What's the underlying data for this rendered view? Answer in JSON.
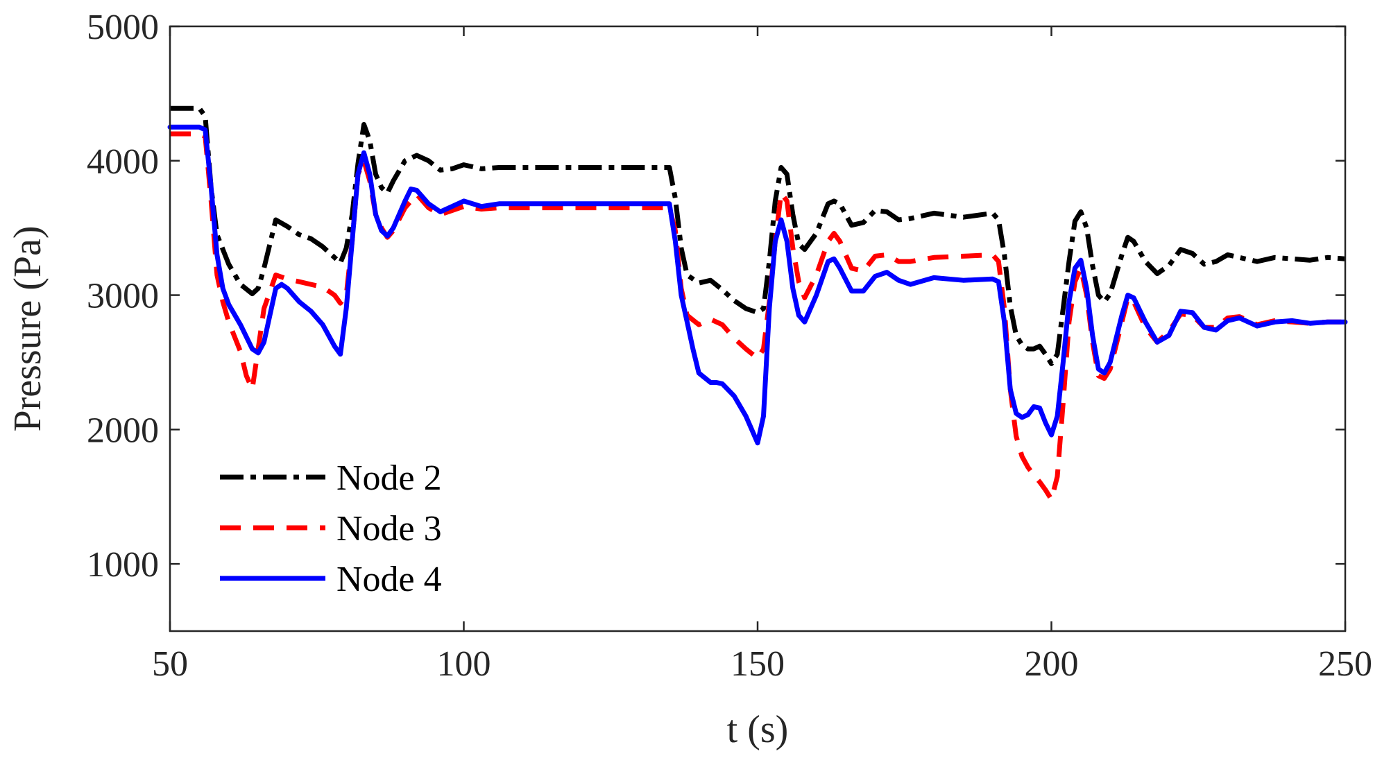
{
  "chart_data": {
    "type": "line",
    "title": "",
    "xlabel": "t (s)",
    "ylabel": "Pressure (Pa)",
    "xlim": [
      50,
      250
    ],
    "ylim": [
      500,
      5000
    ],
    "xticks": [
      50,
      100,
      150,
      200,
      250
    ],
    "yticks": [
      1000,
      2000,
      3000,
      4000,
      5000
    ],
    "xtick_labels": [
      "50",
      "100",
      "150",
      "200",
      "250"
    ],
    "ytick_labels": [
      "1000",
      "2000",
      "3000",
      "4000",
      "5000"
    ],
    "legend_position": "bottom-left",
    "grid": false,
    "series": [
      {
        "name": "Node 2",
        "color": "#000000",
        "style": "dash-dot",
        "x": [
          50,
          55,
          56,
          57,
          58,
          60,
          62,
          64,
          65,
          66,
          68,
          70,
          72,
          74,
          76,
          78,
          79,
          80,
          81,
          82,
          83,
          84,
          85,
          86,
          87,
          88,
          90,
          92,
          94,
          96,
          98,
          100,
          103,
          106,
          110,
          120,
          130,
          135,
          136,
          137,
          138,
          140,
          142,
          144,
          146,
          148,
          150,
          151,
          152,
          153,
          154,
          155,
          156,
          157,
          158,
          160,
          162,
          163,
          164,
          166,
          168,
          170,
          172,
          174,
          176,
          180,
          185,
          190,
          191,
          192,
          193,
          194,
          195,
          196,
          197,
          198,
          199,
          200,
          201,
          202,
          203,
          204,
          205,
          206,
          207,
          208,
          209,
          210,
          212,
          213,
          214,
          216,
          218,
          220,
          222,
          224,
          226,
          228,
          230,
          232,
          235,
          238,
          241,
          244,
          247,
          250
        ],
        "y": [
          4390,
          4390,
          4330,
          3800,
          3450,
          3230,
          3080,
          3010,
          3050,
          3200,
          3560,
          3510,
          3450,
          3420,
          3360,
          3280,
          3240,
          3350,
          3600,
          3980,
          4270,
          4150,
          3900,
          3800,
          3760,
          3850,
          4000,
          4040,
          4000,
          3930,
          3940,
          3970,
          3940,
          3950,
          3950,
          3950,
          3950,
          3950,
          3720,
          3350,
          3150,
          3090,
          3110,
          3040,
          2960,
          2900,
          2870,
          2900,
          3250,
          3700,
          3950,
          3900,
          3600,
          3380,
          3340,
          3460,
          3680,
          3700,
          3680,
          3520,
          3540,
          3630,
          3620,
          3560,
          3570,
          3610,
          3580,
          3610,
          3560,
          3300,
          2920,
          2700,
          2630,
          2600,
          2600,
          2620,
          2560,
          2490,
          2560,
          2900,
          3250,
          3550,
          3620,
          3500,
          3220,
          3000,
          2950,
          3010,
          3300,
          3430,
          3400,
          3250,
          3160,
          3220,
          3340,
          3310,
          3230,
          3250,
          3300,
          3280,
          3250,
          3280,
          3270,
          3260,
          3280,
          3270
        ]
      },
      {
        "name": "Node 3",
        "color": "#ff0000",
        "style": "dashed",
        "x": [
          50,
          55,
          56,
          57,
          58,
          59,
          60,
          62,
          63,
          64,
          65,
          66,
          68,
          70,
          72,
          74,
          76,
          78,
          79,
          80,
          81,
          82,
          83,
          84,
          85,
          86,
          87,
          88,
          90,
          92,
          94,
          96,
          98,
          100,
          103,
          106,
          110,
          120,
          130,
          135,
          136,
          137,
          138,
          140,
          142,
          144,
          146,
          148,
          150,
          151,
          152,
          153,
          154,
          155,
          156,
          157,
          158,
          160,
          162,
          163,
          164,
          166,
          168,
          170,
          172,
          174,
          176,
          180,
          185,
          190,
          191,
          192,
          193,
          194,
          195,
          196,
          197,
          198,
          199,
          200,
          201,
          202,
          203,
          204,
          205,
          206,
          207,
          208,
          209,
          210,
          212,
          213,
          214,
          216,
          218,
          220,
          222,
          224,
          226,
          228,
          230,
          232,
          235,
          238,
          241,
          244,
          247,
          250
        ],
        "y": [
          4200,
          4200,
          4180,
          3700,
          3150,
          2950,
          2800,
          2580,
          2400,
          2300,
          2600,
          2900,
          3150,
          3120,
          3100,
          3080,
          3060,
          3000,
          2940,
          3000,
          3400,
          3900,
          4000,
          3850,
          3600,
          3500,
          3430,
          3480,
          3650,
          3750,
          3650,
          3600,
          3630,
          3660,
          3640,
          3650,
          3650,
          3650,
          3650,
          3650,
          3480,
          3050,
          2850,
          2780,
          2820,
          2780,
          2680,
          2600,
          2530,
          2600,
          2950,
          3400,
          3760,
          3700,
          3350,
          3100,
          2980,
          3150,
          3400,
          3460,
          3400,
          3200,
          3180,
          3290,
          3300,
          3250,
          3250,
          3280,
          3290,
          3300,
          3250,
          2900,
          2300,
          1950,
          1800,
          1720,
          1660,
          1610,
          1550,
          1480,
          1650,
          2200,
          2800,
          3100,
          3200,
          3000,
          2650,
          2400,
          2380,
          2450,
          2800,
          2980,
          2950,
          2760,
          2650,
          2730,
          2860,
          2850,
          2760,
          2760,
          2830,
          2840,
          2780,
          2810,
          2800,
          2790,
          2800,
          2800
        ]
      },
      {
        "name": "Node 4",
        "color": "#0000ff",
        "style": "solid",
        "x": [
          50,
          55,
          56,
          57,
          58,
          59,
          60,
          62,
          64,
          65,
          66,
          67,
          68,
          69,
          70,
          72,
          74,
          76,
          78,
          79,
          80,
          81,
          82,
          83,
          84,
          85,
          86,
          87,
          88,
          90,
          91,
          92,
          94,
          96,
          98,
          100,
          103,
          106,
          110,
          120,
          130,
          135,
          136,
          137,
          138,
          139,
          140,
          142,
          143,
          144,
          146,
          148,
          150,
          151,
          152,
          153,
          154,
          155,
          156,
          157,
          158,
          160,
          162,
          163,
          164,
          166,
          168,
          170,
          172,
          174,
          176,
          180,
          185,
          190,
          191,
          192,
          193,
          194,
          195,
          196,
          197,
          198,
          199,
          200,
          201,
          202,
          203,
          204,
          205,
          206,
          207,
          208,
          209,
          210,
          212,
          213,
          214,
          216,
          218,
          220,
          222,
          224,
          226,
          228,
          230,
          232,
          235,
          238,
          241,
          244,
          247,
          250
        ],
        "y": [
          4250,
          4250,
          4230,
          3800,
          3300,
          3050,
          2930,
          2780,
          2600,
          2570,
          2650,
          2850,
          3050,
          3080,
          3050,
          2950,
          2880,
          2780,
          2620,
          2560,
          2900,
          3400,
          3900,
          4060,
          3900,
          3600,
          3480,
          3440,
          3500,
          3700,
          3790,
          3780,
          3680,
          3620,
          3660,
          3700,
          3660,
          3680,
          3680,
          3680,
          3680,
          3680,
          3400,
          3000,
          2800,
          2600,
          2420,
          2350,
          2350,
          2340,
          2250,
          2100,
          1900,
          2100,
          2900,
          3400,
          3560,
          3400,
          3050,
          2850,
          2800,
          3000,
          3250,
          3270,
          3200,
          3030,
          3030,
          3140,
          3170,
          3110,
          3080,
          3130,
          3110,
          3120,
          3100,
          2800,
          2300,
          2120,
          2090,
          2110,
          2170,
          2160,
          2050,
          1960,
          2100,
          2500,
          2950,
          3200,
          3260,
          3050,
          2700,
          2450,
          2420,
          2500,
          2850,
          3000,
          2980,
          2800,
          2650,
          2700,
          2880,
          2870,
          2760,
          2740,
          2810,
          2830,
          2770,
          2800,
          2810,
          2790,
          2800,
          2800
        ]
      }
    ]
  }
}
